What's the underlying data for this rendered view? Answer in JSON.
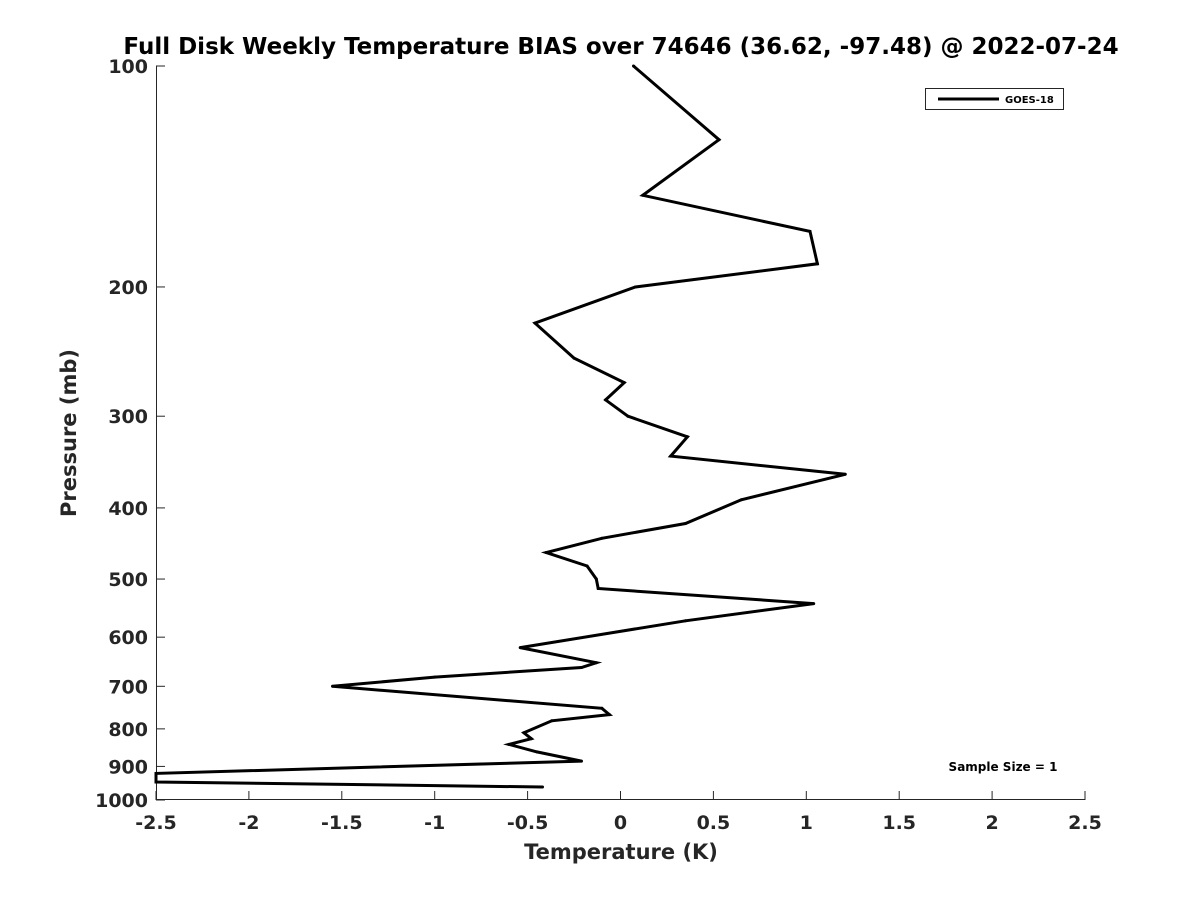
{
  "chart_data": {
    "type": "line",
    "title": "Full Disk Weekly Temperature BIAS over 74646 (36.62, -97.48) @ 2022-07-24",
    "xlabel": "Temperature (K)",
    "ylabel": "Pressure (mb)",
    "xlim": [
      -2.5,
      2.5
    ],
    "ylim": [
      100,
      1000
    ],
    "yscale": "log",
    "yreversed": true,
    "xticks": [
      -2.5,
      -2,
      -1.5,
      -1,
      -0.5,
      0,
      0.5,
      1,
      1.5,
      2,
      2.5
    ],
    "xtick_labels": [
      "-2.5",
      "-2",
      "-1.5",
      "-1",
      "-0.5",
      "0",
      "0.5",
      "1",
      "1.5",
      "2",
      "2.5"
    ],
    "yticks": [
      100,
      200,
      300,
      400,
      500,
      600,
      700,
      800,
      900,
      1000
    ],
    "ytick_labels": [
      "100",
      "200",
      "300",
      "400",
      "500",
      "600",
      "700",
      "800",
      "900",
      "1000"
    ],
    "legend": {
      "position": "top-right",
      "entries": [
        "GOES-18"
      ]
    },
    "annotation": "Sample Size = 1",
    "series": [
      {
        "name": "GOES-18",
        "color": "#000000",
        "points": [
          {
            "x": 0.07,
            "p": 100
          },
          {
            "x": 0.53,
            "p": 126
          },
          {
            "x": 0.12,
            "p": 150
          },
          {
            "x": 1.02,
            "p": 168
          },
          {
            "x": 1.06,
            "p": 186
          },
          {
            "x": 0.08,
            "p": 200
          },
          {
            "x": -0.46,
            "p": 224
          },
          {
            "x": -0.25,
            "p": 250
          },
          {
            "x": 0.02,
            "p": 270
          },
          {
            "x": -0.08,
            "p": 285
          },
          {
            "x": 0.04,
            "p": 300
          },
          {
            "x": 0.36,
            "p": 320
          },
          {
            "x": 0.27,
            "p": 340
          },
          {
            "x": 1.21,
            "p": 360
          },
          {
            "x": 0.65,
            "p": 390
          },
          {
            "x": 0.35,
            "p": 420
          },
          {
            "x": -0.1,
            "p": 440
          },
          {
            "x": -0.4,
            "p": 460
          },
          {
            "x": -0.18,
            "p": 480
          },
          {
            "x": -0.13,
            "p": 500
          },
          {
            "x": -0.12,
            "p": 515
          },
          {
            "x": 1.04,
            "p": 540
          },
          {
            "x": 0.35,
            "p": 570
          },
          {
            "x": -0.54,
            "p": 620
          },
          {
            "x": -0.13,
            "p": 650
          },
          {
            "x": -0.21,
            "p": 660
          },
          {
            "x": -1.0,
            "p": 680
          },
          {
            "x": -1.55,
            "p": 700
          },
          {
            "x": -0.1,
            "p": 750
          },
          {
            "x": -0.06,
            "p": 765
          },
          {
            "x": -0.37,
            "p": 780
          },
          {
            "x": -0.52,
            "p": 810
          },
          {
            "x": -0.48,
            "p": 825
          },
          {
            "x": -0.6,
            "p": 840
          },
          {
            "x": -0.45,
            "p": 860
          },
          {
            "x": -0.21,
            "p": 885
          },
          {
            "x": -2.5,
            "p": 920
          },
          {
            "x": -2.5,
            "p": 945
          },
          {
            "x": -0.42,
            "p": 960
          }
        ]
      }
    ]
  }
}
